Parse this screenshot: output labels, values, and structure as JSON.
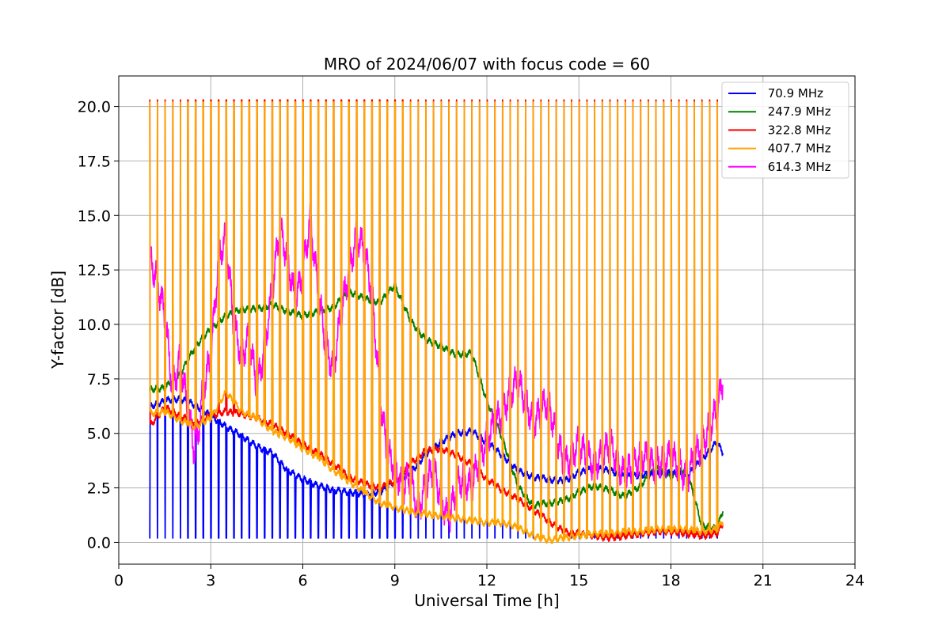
{
  "chart_data": {
    "type": "line",
    "title": "MRO of 2024/06/07 with focus code = 60",
    "xlabel": "Universal Time [h]",
    "ylabel": "Y-factor [dB]",
    "xlim": [
      0,
      24
    ],
    "ylim": [
      -1.0,
      21.4
    ],
    "xticks": [
      0,
      3,
      6,
      9,
      12,
      15,
      18,
      21,
      24
    ],
    "xtick_labels": [
      "0",
      "3",
      "6",
      "9",
      "12",
      "15",
      "18",
      "21",
      "24"
    ],
    "yticks": [
      0,
      2.5,
      5,
      7.5,
      10,
      12.5,
      15,
      17.5,
      20
    ],
    "ytick_labels": [
      "0.0",
      "2.5",
      "5.0",
      "7.5",
      "10.0",
      "12.5",
      "15.0",
      "17.5",
      "20.0"
    ],
    "grid": true,
    "legend_position": "top-right",
    "series": [
      {
        "name": " 70.9 MHz",
        "color": "#0000ff",
        "x": [
          1.0,
          1.5,
          2.0,
          2.5,
          3.0,
          3.5,
          4.0,
          4.5,
          5.0,
          5.5,
          6.0,
          6.5,
          7.0,
          7.5,
          8.0,
          8.5,
          9.0,
          9.5,
          10.0,
          10.5,
          11.0,
          11.5,
          12.0,
          12.5,
          13.0,
          13.5,
          14.0,
          14.5,
          15.0,
          15.5,
          16.0,
          16.5,
          17.0,
          17.5,
          18.0,
          18.5,
          19.0,
          19.5,
          19.7
        ],
        "values": [
          6.2,
          6.5,
          6.6,
          6.3,
          5.8,
          5.3,
          4.9,
          4.4,
          4.1,
          3.3,
          2.9,
          2.6,
          2.4,
          2.3,
          2.2,
          2.3,
          2.8,
          3.2,
          4.0,
          4.6,
          5.0,
          5.1,
          4.6,
          4.0,
          3.3,
          3.0,
          2.9,
          2.8,
          3.2,
          3.4,
          3.3,
          3.0,
          3.1,
          3.1,
          3.2,
          3.0,
          3.8,
          4.6,
          4.1
        ]
      },
      {
        "name": " 247.9 MHz",
        "color": "#008000",
        "x": [
          1.0,
          1.5,
          2.0,
          2.5,
          3.0,
          3.5,
          4.0,
          4.5,
          5.0,
          5.5,
          6.0,
          6.5,
          7.0,
          7.5,
          8.0,
          8.5,
          9.0,
          9.5,
          10.0,
          10.5,
          11.0,
          11.5,
          12.0,
          12.5,
          13.0,
          13.5,
          14.0,
          14.5,
          15.0,
          15.5,
          16.0,
          16.5,
          17.0,
          17.5,
          18.0,
          18.5,
          19.0,
          19.5,
          19.7
        ],
        "values": [
          7.0,
          7.1,
          7.7,
          9.0,
          9.8,
          10.4,
          10.7,
          10.7,
          10.9,
          10.6,
          10.4,
          10.6,
          10.8,
          11.5,
          11.2,
          11.0,
          11.8,
          10.2,
          9.3,
          9.0,
          8.6,
          8.7,
          6.5,
          4.8,
          2.6,
          1.7,
          1.8,
          1.9,
          2.3,
          2.6,
          2.4,
          2.1,
          2.6,
          3.4,
          3.0,
          3.4,
          0.8,
          0.6,
          1.5
        ]
      },
      {
        "name": " 322.8 MHz",
        "color": "#ff0000",
        "x": [
          1.0,
          1.5,
          2.0,
          2.5,
          3.0,
          3.5,
          4.0,
          4.5,
          5.0,
          5.5,
          6.0,
          6.5,
          7.0,
          7.5,
          8.0,
          8.5,
          9.0,
          9.5,
          10.0,
          10.5,
          11.0,
          11.5,
          12.0,
          12.5,
          13.0,
          13.5,
          14.0,
          14.5,
          15.0,
          15.5,
          16.0,
          16.5,
          17.0,
          17.5,
          18.0,
          18.5,
          19.0,
          19.5,
          19.7
        ],
        "values": [
          5.3,
          6.2,
          5.8,
          5.5,
          5.8,
          6.0,
          5.9,
          5.7,
          5.4,
          5.0,
          4.5,
          4.1,
          3.6,
          3.0,
          2.7,
          2.5,
          2.8,
          3.6,
          4.2,
          4.3,
          4.0,
          3.6,
          2.9,
          2.4,
          2.0,
          1.5,
          1.0,
          0.5,
          0.4,
          0.3,
          0.2,
          0.3,
          0.4,
          0.5,
          0.5,
          0.4,
          0.3,
          0.4,
          0.9
        ]
      },
      {
        "name": " 407.7 MHz",
        "color": "#ffa500",
        "x": [
          1.0,
          1.5,
          2.0,
          2.5,
          3.0,
          3.5,
          4.0,
          4.5,
          5.0,
          5.5,
          6.0,
          6.5,
          7.0,
          7.5,
          8.0,
          8.5,
          9.0,
          9.5,
          10.0,
          10.5,
          11.0,
          11.5,
          12.0,
          12.5,
          13.0,
          13.5,
          14.0,
          14.5,
          15.0,
          15.5,
          16.0,
          16.5,
          17.0,
          17.5,
          18.0,
          18.5,
          19.0,
          19.5,
          19.7
        ],
        "values": [
          5.9,
          6.0,
          5.6,
          5.3,
          5.7,
          6.9,
          6.0,
          5.7,
          5.1,
          4.8,
          4.3,
          3.9,
          3.3,
          2.8,
          2.3,
          1.8,
          1.6,
          1.4,
          1.3,
          1.2,
          1.1,
          1.0,
          0.9,
          0.9,
          0.7,
          0.3,
          0.1,
          0.2,
          0.3,
          0.4,
          0.4,
          0.5,
          0.5,
          0.6,
          0.6,
          0.6,
          0.5,
          0.6,
          1.0
        ]
      },
      {
        "name": " 614.3 MHz",
        "color": "#ff00ff",
        "x": [
          1.0,
          1.25,
          1.5,
          1.75,
          2.0,
          2.25,
          2.5,
          2.75,
          3.0,
          3.25,
          3.5,
          3.75,
          4.0,
          4.25,
          4.5,
          4.75,
          5.0,
          5.25,
          5.5,
          5.75,
          6.0,
          6.25,
          6.5,
          6.75,
          7.0,
          7.25,
          7.5,
          7.75,
          8.0,
          8.25,
          8.5,
          8.75,
          9.0,
          9.25,
          9.5,
          9.75,
          10.0,
          10.25,
          10.5,
          10.75,
          11.0,
          11.25,
          11.5,
          11.75,
          12.0,
          12.5,
          13.0,
          13.5,
          14.0,
          14.5,
          15.0,
          15.5,
          16.0,
          16.5,
          17.0,
          17.5,
          18.0,
          18.5,
          19.0,
          19.5,
          19.7
        ],
        "values": [
          13.0,
          12.0,
          10.5,
          7.0,
          8.5,
          6.0,
          4.0,
          7.0,
          8.5,
          13.0,
          14.0,
          10.0,
          8.5,
          9.5,
          7.0,
          9.0,
          11.5,
          14.5,
          13.0,
          11.0,
          12.5,
          14.8,
          11.5,
          9.0,
          8.0,
          10.5,
          12.5,
          14.0,
          13.5,
          11.5,
          7.0,
          4.0,
          3.5,
          2.5,
          3.0,
          1.5,
          2.5,
          3.5,
          2.0,
          1.0,
          2.5,
          3.0,
          2.5,
          3.8,
          4.8,
          6.0,
          7.5,
          5.5,
          6.5,
          3.5,
          4.5,
          3.5,
          4.5,
          3.0,
          4.0,
          3.5,
          4.0,
          3.0,
          4.5,
          6.0,
          7.6
        ]
      }
    ],
    "cal_pulses": {
      "start_hour": 1.0,
      "end_hour": 19.55,
      "spacing_hours": 0.25,
      "orange_high": 20.2,
      "red_high": 20.3,
      "magenta_high": 11.1,
      "blue_low": 0.2
    }
  }
}
